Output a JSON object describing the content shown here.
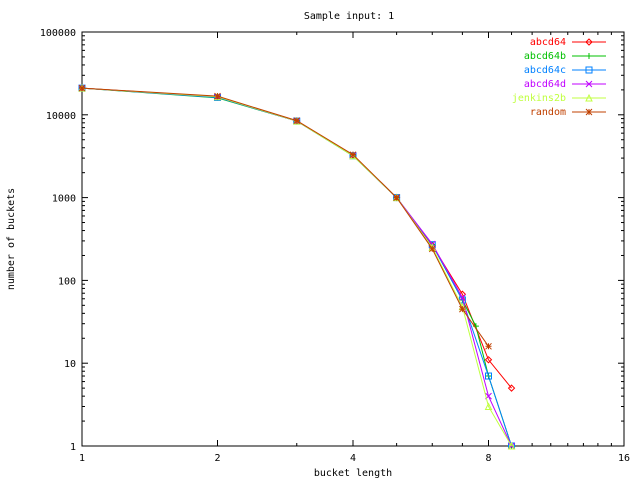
{
  "chart_data": {
    "type": "line",
    "title": "Sample input: 1",
    "xlabel": "bucket length",
    "ylabel": "number of buckets",
    "x_scale": "log2",
    "y_scale": "log10",
    "xlim": [
      1,
      16
    ],
    "ylim": [
      1,
      100000
    ],
    "x_ticks": [
      1,
      2,
      4,
      8,
      16
    ],
    "x_tick_labels": [
      "1",
      "2",
      "4",
      "8",
      "16"
    ],
    "y_ticks": [
      1,
      10,
      100,
      1000,
      10000,
      100000
    ],
    "y_tick_labels": [
      "1",
      "10",
      "100",
      "1000",
      "10000",
      "100000"
    ],
    "grid": false,
    "legend_position": "top-right",
    "series": [
      {
        "name": "abcd64",
        "color": "#ff0000",
        "marker": "diamond",
        "x": [
          1,
          2,
          3,
          4,
          5,
          6,
          7,
          8,
          9
        ],
        "y": [
          21000,
          16500,
          8400,
          3250,
          1000,
          265,
          68,
          11,
          5
        ]
      },
      {
        "name": "abcd64b",
        "color": "#00c000",
        "marker": "plus",
        "x": [
          1,
          2,
          3,
          4,
          5,
          6,
          7,
          7.5,
          8,
          9
        ],
        "y": [
          21000,
          16000,
          8400,
          3200,
          1000,
          270,
          58,
          28,
          7,
          1
        ]
      },
      {
        "name": "abcd64c",
        "color": "#0080ff",
        "marker": "square",
        "x": [
          1,
          2,
          3,
          4,
          5,
          6,
          7,
          8,
          9
        ],
        "y": [
          21000,
          16200,
          8400,
          3200,
          1000,
          270,
          58,
          7,
          1
        ]
      },
      {
        "name": "abcd64d",
        "color": "#c000ff",
        "marker": "x",
        "x": [
          1,
          2,
          3,
          4,
          5,
          6,
          7,
          8,
          9
        ],
        "y": [
          21000,
          16500,
          8400,
          3250,
          1000,
          275,
          62,
          4,
          1
        ]
      },
      {
        "name": "jenkins2b",
        "color": "#c0ff40",
        "marker": "triangle",
        "x": [
          1,
          2,
          3,
          4,
          5,
          6,
          7,
          8,
          9
        ],
        "y": [
          21000,
          16500,
          8400,
          3200,
          1000,
          250,
          48,
          3,
          1
        ]
      },
      {
        "name": "random",
        "color": "#c04000",
        "marker": "star",
        "x": [
          1,
          2,
          3,
          4,
          5,
          6,
          7,
          8
        ],
        "y": [
          21000,
          16800,
          8500,
          3300,
          1000,
          240,
          45,
          16
        ]
      }
    ]
  }
}
